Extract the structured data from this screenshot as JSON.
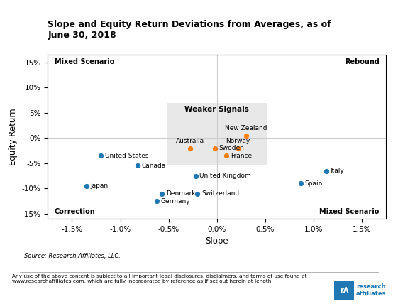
{
  "chart_data": {
    "type": "scatter",
    "title": "Slope and Equity Return Deviations from Averages, as of\nJune 30, 2018",
    "xlabel": "Slope",
    "ylabel": "Equity Return",
    "series": [
      {
        "x": [
          -1.2,
          -0.82,
          -1.35,
          -0.57,
          -0.62,
          -0.2,
          -0.22,
          1.13,
          0.87
        ],
        "values": [
          -3.5,
          -5.5,
          -9.5,
          -11.0,
          -12.5,
          -11.0,
          -7.5,
          -6.5,
          -9.0
        ],
        "labels": [
          "United States",
          "Canada",
          "Japan",
          "Denmark",
          "Germany",
          "Switzerland",
          "United Kingdom",
          "Italy",
          "Spain"
        ]
      },
      {
        "x": [
          -0.28,
          -0.02,
          0.22,
          0.1,
          0.3
        ],
        "values": [
          -2.0,
          -2.0,
          -2.0,
          -3.5,
          0.5
        ],
        "labels": [
          "Australia",
          "Sweden",
          "Norway",
          "France",
          "New Zealand"
        ]
      }
    ],
    "xlim": [
      -1.75,
      1.75
    ],
    "xticks": [
      {
        "value": -1.5,
        "label": "-1.5%"
      },
      {
        "value": -1.0,
        "label": "-1.0%"
      },
      {
        "value": -0.5,
        "label": "-0.5%"
      },
      {
        "value": 0.0,
        "label": "0.0%"
      },
      {
        "value": 0.5,
        "label": "0.5%"
      },
      {
        "value": 1.0,
        "label": "1.0%"
      },
      {
        "value": 1.5,
        "label": "1.5%"
      }
    ],
    "ylim": [
      -16.0,
      16.5
    ],
    "yticks": [
      {
        "value": -15,
        "label": "-15%"
      },
      {
        "value": -10,
        "label": "-10%"
      },
      {
        "value": -5,
        "label": "-5%"
      },
      {
        "value": 0,
        "label": "0%"
      },
      {
        "value": 5,
        "label": "5%"
      },
      {
        "value": 10,
        "label": "10%"
      },
      {
        "value": 15,
        "label": "15%"
      }
    ],
    "grid": false,
    "shaded_region": {
      "x": [
        -0.52,
        0.52
      ],
      "y": [
        -5.5,
        7.0
      ],
      "label": "Weaker Signals"
    },
    "quadrant_labels": [
      "Mixed Scenario",
      "Rebound",
      "Correction",
      "Mixed Scenario"
    ],
    "source": "Source: Research Affiliates, LLC.",
    "footer": "Any use of the above content is subject to all important legal disclosures, disclaimers, and terms of use found at\nwww.researchaffiliates.com, which are fully incorporated by reference as if set out herein at length.",
    "logo": [
      "rA",
      "research\naffiliates"
    ]
  }
}
